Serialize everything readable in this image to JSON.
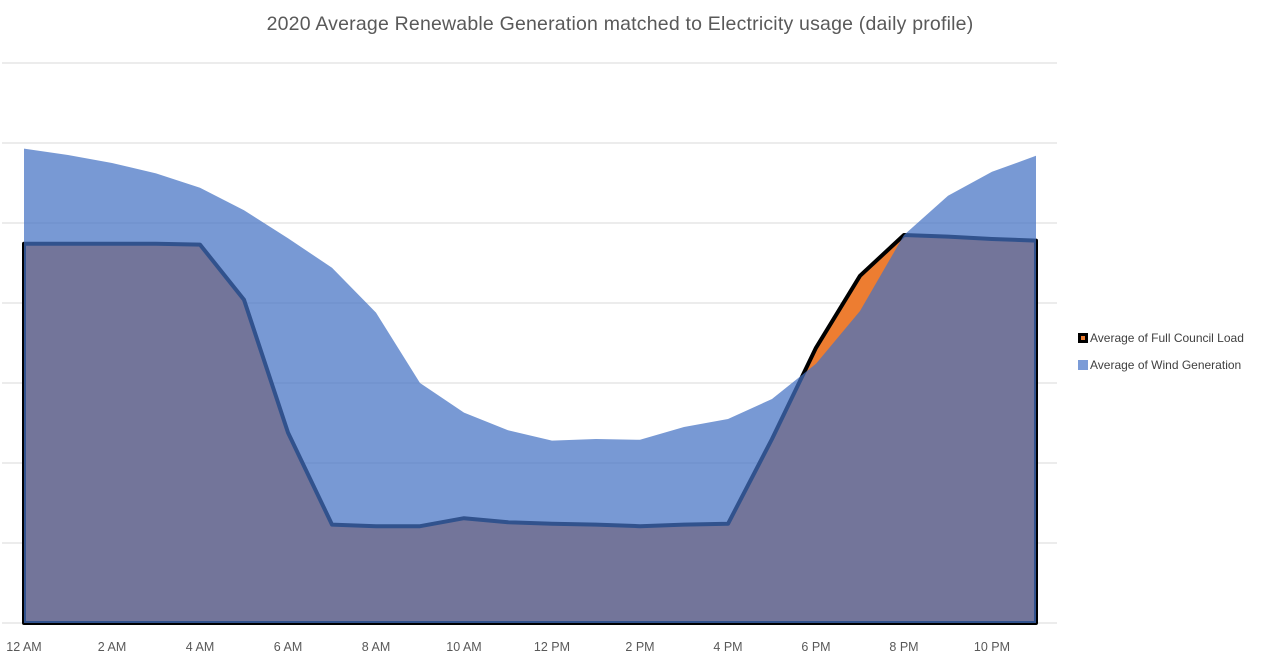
{
  "title": "2020 Average Renewable Generation matched to Electricity usage (daily profile)",
  "legend": {
    "position": "right",
    "items": [
      {
        "label": "Average of Full Council Load",
        "series_id": "load",
        "marker": "black-bordered-orange-square-icon"
      },
      {
        "label": "Average of Wind Generation",
        "series_id": "wind",
        "marker": "blue-square-icon"
      }
    ]
  },
  "colors": {
    "load_fill": "#ED7D31",
    "load_border": "#000000",
    "wind_fill": "#4472C4",
    "wind_opacity": 0.72,
    "wind_rendered_over_white": "#7B9BD7",
    "overlap_rendered": "#6B75A1",
    "gridline": "#D9D9D9",
    "axis_text": "#595959",
    "legend_text": "#404040",
    "title_text": "#595959"
  },
  "chart_data": {
    "type": "area",
    "title": "2020 Average Renewable Generation matched to Electricity usage (daily profile)",
    "x_tick_labels": [
      "12 AM",
      "2 AM",
      "4 AM",
      "6 AM",
      "8 AM",
      "10 AM",
      "12 PM",
      "2 PM",
      "4 PM",
      "6 PM",
      "8 PM",
      "10 PM"
    ],
    "x": [
      0,
      1,
      2,
      3,
      4,
      5,
      6,
      7,
      8,
      9,
      10,
      11,
      12,
      13,
      14,
      15,
      16,
      17,
      18,
      19,
      20,
      21,
      22,
      23
    ],
    "x_unit": "hour of day",
    "series": [
      {
        "id": "load",
        "name": "Average of Full Council Load",
        "style": "area, orange fill, thick black border",
        "values": [
          4.74,
          4.74,
          4.74,
          4.74,
          4.73,
          4.04,
          2.38,
          1.23,
          1.21,
          1.21,
          1.31,
          1.26,
          1.24,
          1.23,
          1.21,
          1.23,
          1.24,
          2.3,
          3.44,
          4.34,
          4.85,
          4.83,
          4.8,
          4.78
        ]
      },
      {
        "id": "wind",
        "name": "Average of Wind Generation",
        "style": "area, semi-transparent blue fill, drawn on top",
        "values": [
          5.93,
          5.85,
          5.75,
          5.62,
          5.44,
          5.16,
          4.81,
          4.44,
          3.88,
          3.0,
          2.63,
          2.41,
          2.28,
          2.3,
          2.29,
          2.45,
          2.55,
          2.8,
          3.24,
          3.9,
          4.85,
          5.34,
          5.64,
          5.84
        ]
      }
    ],
    "xlabel": "",
    "ylabel": "",
    "ylim": [
      0,
      7
    ],
    "y_axis_labels_visible": false,
    "y_value_note": "y-axis has no visible labels; values estimated in horizontal-gridline units (0 = baseline, 7 = top gridline)",
    "grid": "horizontal gridlines only",
    "legend_position": "right"
  }
}
